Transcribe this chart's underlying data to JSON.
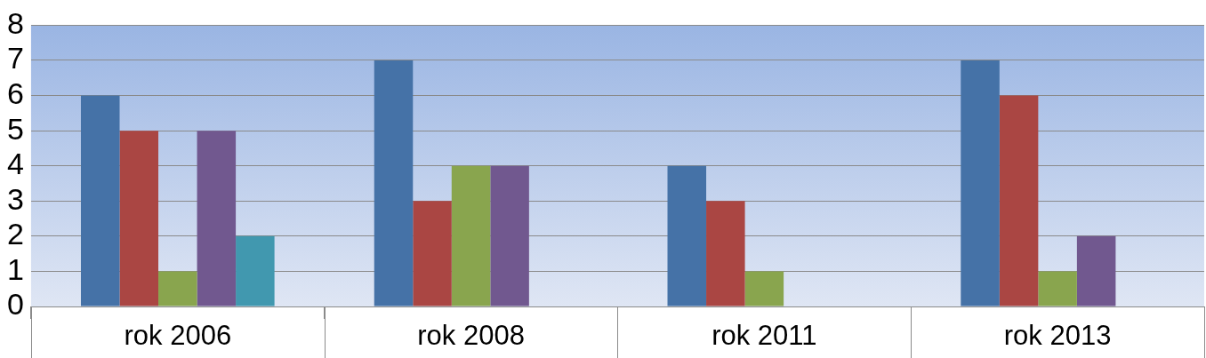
{
  "chart_data": {
    "type": "bar",
    "categories": [
      "rok 2006",
      "rok 2008",
      "rok 2011",
      "rok 2013"
    ],
    "series": [
      {
        "color": "#4572a7",
        "values": [
          6,
          7,
          4,
          7
        ]
      },
      {
        "color": "#aa4643",
        "values": [
          5,
          3,
          3,
          6
        ]
      },
      {
        "color": "#89a54e",
        "values": [
          1,
          4,
          1,
          1
        ]
      },
      {
        "color": "#71588f",
        "values": [
          5,
          4,
          0,
          2
        ]
      },
      {
        "color": "#4198af",
        "values": [
          2,
          0,
          0,
          0
        ]
      }
    ],
    "ylim": [
      0,
      8
    ],
    "yticks": [
      0,
      1,
      2,
      3,
      4,
      5,
      6,
      7,
      8
    ],
    "grid": "y",
    "legend": false
  }
}
